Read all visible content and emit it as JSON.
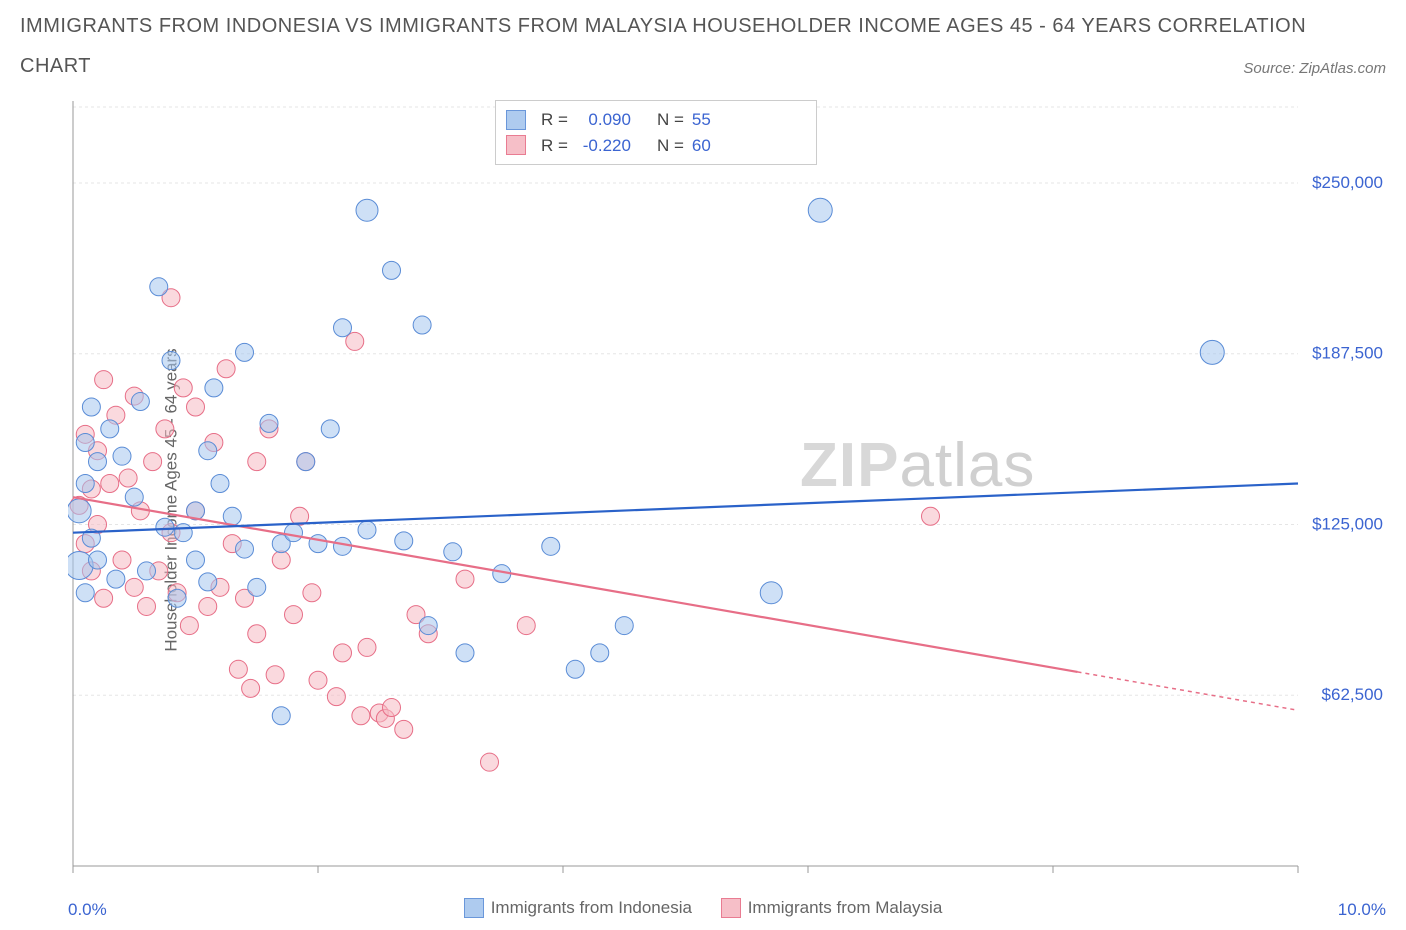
{
  "title_line1": "IMMIGRANTS FROM INDONESIA VS IMMIGRANTS FROM MALAYSIA HOUSEHOLDER INCOME AGES 45 - 64 YEARS CORRELATION",
  "title_line2": "CHART",
  "source_prefix": "Source: ",
  "source_name": "ZipAtlas.com",
  "ylabel": "Householder Income Ages 45 - 64 years",
  "x_axis": {
    "min_label": "0.0%",
    "max_label": "10.0%",
    "xlim": [
      0,
      10
    ],
    "ticks": [
      0,
      2,
      4,
      6,
      8,
      10
    ]
  },
  "y_axis": {
    "ylim": [
      0,
      280000
    ],
    "tick_values": [
      62500,
      125000,
      187500,
      250000
    ],
    "tick_labels": [
      "$62,500",
      "$125,000",
      "$187,500",
      "$250,000"
    ],
    "tick_color": "#3b64d1"
  },
  "grid_color": "#e5e5e5",
  "axis_color": "#999999",
  "background_color": "#ffffff",
  "watermark": {
    "z": "ZIP",
    "rest": "atlas"
  },
  "series": {
    "indonesia": {
      "label": "Immigrants from Indonesia",
      "fill": "#a6c6ee",
      "fill_opacity": 0.55,
      "stroke": "#5a8cd6",
      "regression_color": "#2a62c9",
      "R": "0.090",
      "N": "55",
      "trend": {
        "x1": 0,
        "y1": 122000,
        "x2": 10,
        "y2": 140000,
        "solid_until_x": 10
      }
    },
    "malaysia": {
      "label": "Immigrants from Malaysia",
      "fill": "#f6b9c3",
      "fill_opacity": 0.55,
      "stroke": "#e76e87",
      "regression_color": "#e76e87",
      "R": "-0.220",
      "N": "60",
      "trend": {
        "x1": 0,
        "y1": 135000,
        "x2": 10,
        "y2": 57000,
        "solid_until_x": 8.2
      }
    }
  },
  "stats_legend": {
    "r_label": "R =",
    "n_label": "N =",
    "r_color": "#3b64d1",
    "n_color": "#3b64d1"
  },
  "points": {
    "indonesia": [
      [
        0.05,
        110000,
        14
      ],
      [
        0.05,
        130000,
        12
      ],
      [
        0.1,
        140000,
        9
      ],
      [
        0.1,
        100000,
        9
      ],
      [
        0.1,
        155000,
        9
      ],
      [
        0.15,
        120000,
        9
      ],
      [
        0.15,
        168000,
        9
      ],
      [
        0.2,
        112000,
        9
      ],
      [
        0.2,
        148000,
        9
      ],
      [
        0.3,
        160000,
        9
      ],
      [
        0.35,
        105000,
        9
      ],
      [
        0.4,
        150000,
        9
      ],
      [
        0.5,
        135000,
        9
      ],
      [
        0.55,
        170000,
        9
      ],
      [
        0.6,
        108000,
        9
      ],
      [
        0.7,
        212000,
        9
      ],
      [
        0.75,
        124000,
        9
      ],
      [
        0.8,
        185000,
        9
      ],
      [
        0.85,
        98000,
        9
      ],
      [
        0.9,
        122000,
        9
      ],
      [
        1.0,
        130000,
        9
      ],
      [
        1.0,
        112000,
        9
      ],
      [
        1.1,
        152000,
        9
      ],
      [
        1.1,
        104000,
        9
      ],
      [
        1.15,
        175000,
        9
      ],
      [
        1.2,
        140000,
        9
      ],
      [
        1.3,
        128000,
        9
      ],
      [
        1.4,
        116000,
        9
      ],
      [
        1.4,
        188000,
        9
      ],
      [
        1.5,
        102000,
        9
      ],
      [
        1.6,
        162000,
        9
      ],
      [
        1.7,
        118000,
        9
      ],
      [
        1.7,
        55000,
        9
      ],
      [
        1.8,
        122000,
        9
      ],
      [
        1.9,
        148000,
        9
      ],
      [
        2.0,
        118000,
        9
      ],
      [
        2.1,
        160000,
        9
      ],
      [
        2.2,
        197000,
        9
      ],
      [
        2.2,
        117000,
        9
      ],
      [
        2.4,
        240000,
        11
      ],
      [
        2.4,
        123000,
        9
      ],
      [
        2.6,
        218000,
        9
      ],
      [
        2.7,
        119000,
        9
      ],
      [
        2.85,
        198000,
        9
      ],
      [
        2.9,
        88000,
        9
      ],
      [
        3.1,
        115000,
        9
      ],
      [
        3.2,
        78000,
        9
      ],
      [
        3.5,
        107000,
        9
      ],
      [
        3.9,
        117000,
        9
      ],
      [
        4.1,
        72000,
        9
      ],
      [
        4.3,
        78000,
        9
      ],
      [
        4.5,
        88000,
        9
      ],
      [
        5.7,
        100000,
        11
      ],
      [
        6.1,
        240000,
        12
      ],
      [
        9.3,
        188000,
        12
      ]
    ],
    "malaysia": [
      [
        0.05,
        132000,
        9
      ],
      [
        0.1,
        118000,
        9
      ],
      [
        0.1,
        158000,
        9
      ],
      [
        0.15,
        138000,
        9
      ],
      [
        0.15,
        108000,
        9
      ],
      [
        0.2,
        152000,
        9
      ],
      [
        0.2,
        125000,
        9
      ],
      [
        0.25,
        98000,
        9
      ],
      [
        0.25,
        178000,
        9
      ],
      [
        0.3,
        140000,
        9
      ],
      [
        0.35,
        165000,
        9
      ],
      [
        0.4,
        112000,
        9
      ],
      [
        0.45,
        142000,
        9
      ],
      [
        0.5,
        102000,
        9
      ],
      [
        0.5,
        172000,
        9
      ],
      [
        0.55,
        130000,
        9
      ],
      [
        0.6,
        95000,
        9
      ],
      [
        0.65,
        148000,
        9
      ],
      [
        0.7,
        108000,
        9
      ],
      [
        0.75,
        160000,
        9
      ],
      [
        0.8,
        208000,
        9
      ],
      [
        0.8,
        122000,
        9
      ],
      [
        0.85,
        100000,
        9
      ],
      [
        0.9,
        175000,
        9
      ],
      [
        0.95,
        88000,
        9
      ],
      [
        1.0,
        168000,
        9
      ],
      [
        1.0,
        130000,
        9
      ],
      [
        1.1,
        95000,
        9
      ],
      [
        1.15,
        155000,
        9
      ],
      [
        1.2,
        102000,
        9
      ],
      [
        1.25,
        182000,
        9
      ],
      [
        1.3,
        118000,
        9
      ],
      [
        1.35,
        72000,
        9
      ],
      [
        1.4,
        98000,
        9
      ],
      [
        1.45,
        65000,
        9
      ],
      [
        1.5,
        148000,
        9
      ],
      [
        1.5,
        85000,
        9
      ],
      [
        1.6,
        160000,
        9
      ],
      [
        1.65,
        70000,
        9
      ],
      [
        1.7,
        112000,
        9
      ],
      [
        1.8,
        92000,
        9
      ],
      [
        1.85,
        128000,
        9
      ],
      [
        1.9,
        148000,
        9
      ],
      [
        1.95,
        100000,
        9
      ],
      [
        2.0,
        68000,
        9
      ],
      [
        2.15,
        62000,
        9
      ],
      [
        2.2,
        78000,
        9
      ],
      [
        2.3,
        192000,
        9
      ],
      [
        2.35,
        55000,
        9
      ],
      [
        2.4,
        80000,
        9
      ],
      [
        2.5,
        56000,
        9
      ],
      [
        2.55,
        54000,
        9
      ],
      [
        2.6,
        58000,
        9
      ],
      [
        2.7,
        50000,
        9
      ],
      [
        2.8,
        92000,
        9
      ],
      [
        2.9,
        85000,
        9
      ],
      [
        3.2,
        105000,
        9
      ],
      [
        3.4,
        38000,
        9
      ],
      [
        3.7,
        88000,
        9
      ],
      [
        7.0,
        128000,
        9
      ]
    ]
  }
}
